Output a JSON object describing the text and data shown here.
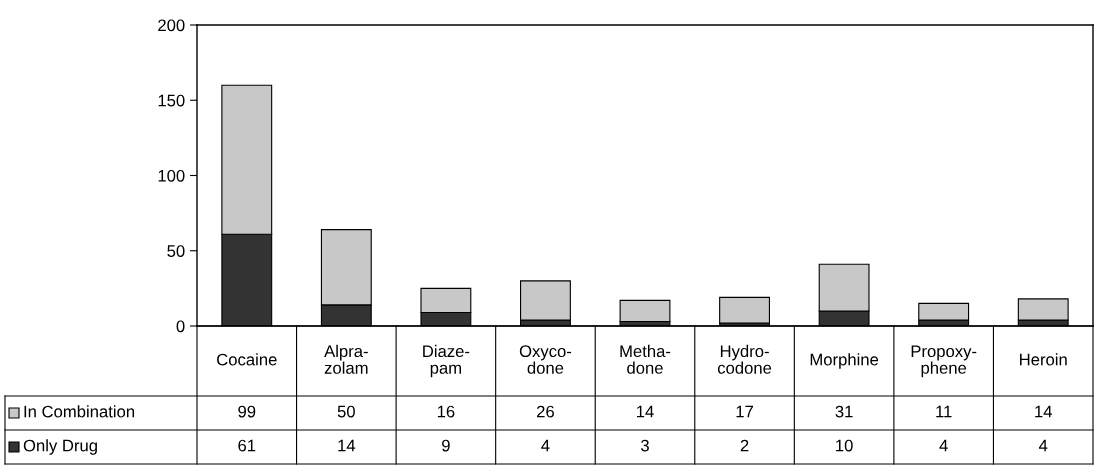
{
  "chart_data": {
    "type": "bar",
    "stacked": true,
    "categories": [
      "Cocaine",
      "Alpra-\nzolam",
      "Diaze-\npam",
      "Oxyco-\ndone",
      "Metha-\ndone",
      "Hydro-\ncodone",
      "Morphine",
      "Propoxy-\nphene",
      "Heroin"
    ],
    "series": [
      {
        "name": "Only Drug",
        "color": "#333333",
        "values": [
          61,
          14,
          9,
          4,
          3,
          2,
          10,
          4,
          4
        ]
      },
      {
        "name": "In Combination",
        "color": "#c8c8c8",
        "values": [
          99,
          50,
          16,
          26,
          14,
          17,
          31,
          11,
          14
        ]
      }
    ],
    "ylim": [
      0,
      200
    ],
    "yticks": [
      0,
      50,
      100,
      150,
      200
    ],
    "data_labels": true,
    "legend": "bottom left",
    "grid": false
  }
}
